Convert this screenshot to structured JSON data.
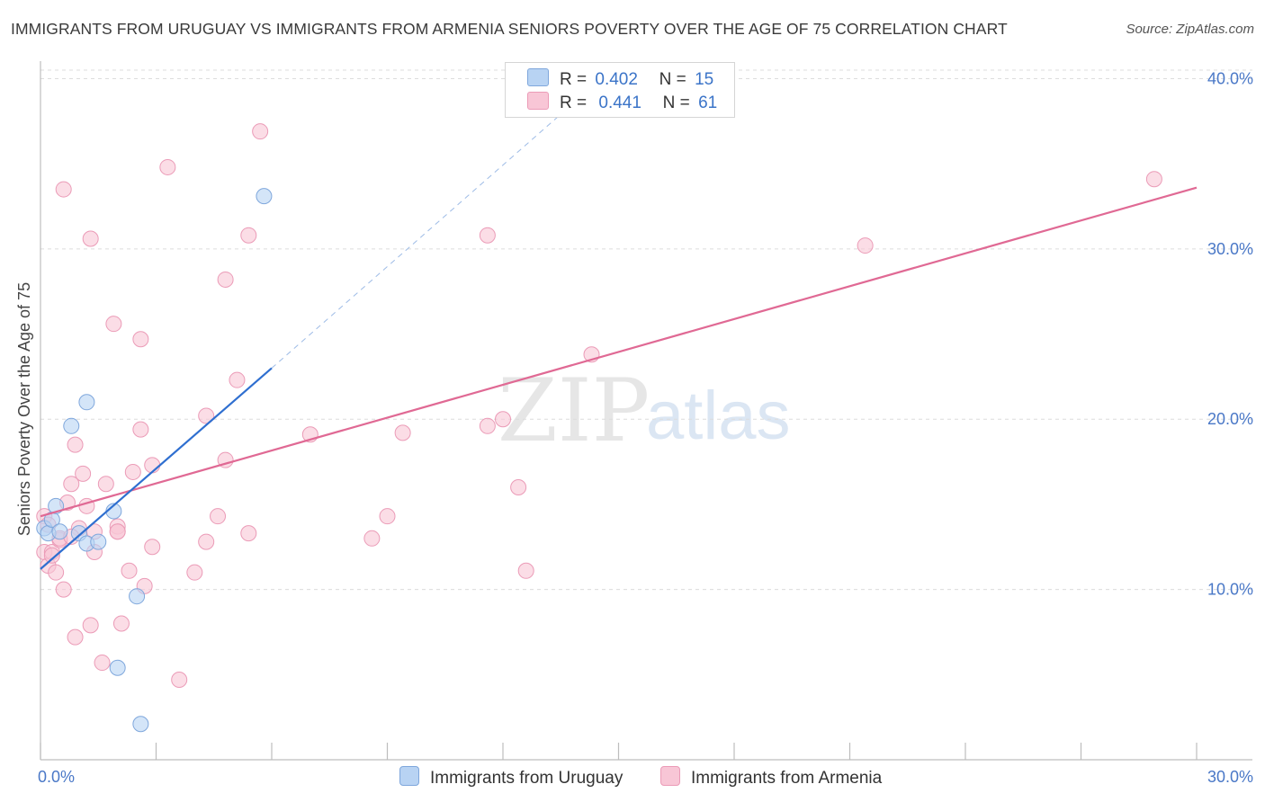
{
  "title": "IMMIGRANTS FROM URUGUAY VS IMMIGRANTS FROM ARMENIA SENIORS POVERTY OVER THE AGE OF 75 CORRELATION CHART",
  "source": "Source: ZipAtlas.com",
  "watermark": {
    "zip": "ZIP",
    "atlas": "atlas"
  },
  "legend": {
    "rows": [
      {
        "r_label": "R =",
        "r_value": "0.402",
        "n_label": "N =",
        "n_value": "15"
      },
      {
        "r_label": "R =",
        "r_value": "0.441",
        "n_label": "N =",
        "n_value": "61"
      }
    ]
  },
  "bottom_legend": {
    "series1": "Immigrants from Uruguay",
    "series2": "Immigrants from Armenia"
  },
  "chart_data": {
    "type": "scatter",
    "title": "IMMIGRANTS FROM URUGUAY VS IMMIGRANTS FROM ARMENIA SENIORS POVERTY OVER THE AGE OF 75 CORRELATION CHART",
    "xlabel": "",
    "ylabel": "Seniors Poverty Over the Age of 75",
    "xlim": [
      0,
      30
    ],
    "ylim": [
      0,
      40.5
    ],
    "x_ticks": [
      {
        "value": 0,
        "label": "0.0%"
      },
      {
        "value": 30,
        "label": "30.0%"
      }
    ],
    "y_ticks": [
      {
        "value": 10,
        "label": "10.0%"
      },
      {
        "value": 20,
        "label": "20.0%"
      },
      {
        "value": 30,
        "label": "30.0%"
      },
      {
        "value": 40,
        "label": "40.0%"
      }
    ],
    "colors": {
      "uruguay_fill": "#b8d3f3",
      "uruguay_stroke": "#7fa7dc",
      "uruguay_line": "#2f6fd0",
      "armenia_fill": "#f8c6d6",
      "armenia_stroke": "#eb9bb7",
      "armenia_line": "#e06994",
      "grid": "#dcdcdc",
      "tick_text": "#4a78c7"
    },
    "series": [
      {
        "name": "Immigrants from Uruguay",
        "R": 0.402,
        "N": 15,
        "trend": {
          "x0": 0.0,
          "y0": 11.2,
          "x1": 6.0,
          "y1": 23.0,
          "dash_to_x": 14.0,
          "dash_to_y": 38.9
        },
        "points": [
          [
            0.1,
            13.6
          ],
          [
            0.2,
            13.3
          ],
          [
            0.3,
            14.1
          ],
          [
            0.4,
            14.9
          ],
          [
            0.5,
            13.4
          ],
          [
            0.8,
            19.6
          ],
          [
            1.0,
            13.3
          ],
          [
            1.2,
            21.0
          ],
          [
            1.2,
            12.7
          ],
          [
            1.5,
            12.8
          ],
          [
            1.9,
            14.6
          ],
          [
            2.0,
            5.4
          ],
          [
            2.5,
            9.6
          ],
          [
            2.6,
            2.1
          ],
          [
            5.8,
            33.1
          ]
        ]
      },
      {
        "name": "Immigrants from Armenia",
        "R": 0.441,
        "N": 61,
        "trend": {
          "x0": 0.0,
          "y0": 14.3,
          "x1": 30.0,
          "y1": 33.6
        },
        "points": [
          [
            0.1,
            14.3
          ],
          [
            0.1,
            12.2
          ],
          [
            0.2,
            11.4
          ],
          [
            0.2,
            13.8
          ],
          [
            0.3,
            12.2
          ],
          [
            0.4,
            11.0
          ],
          [
            0.5,
            12.9
          ],
          [
            0.5,
            13.0
          ],
          [
            0.6,
            10.0
          ],
          [
            0.6,
            33.5
          ],
          [
            0.7,
            15.1
          ],
          [
            0.8,
            16.2
          ],
          [
            0.9,
            7.2
          ],
          [
            0.9,
            18.5
          ],
          [
            1.0,
            13.6
          ],
          [
            1.1,
            16.8
          ],
          [
            1.2,
            14.9
          ],
          [
            1.3,
            7.9
          ],
          [
            1.3,
            30.6
          ],
          [
            1.4,
            12.2
          ],
          [
            1.6,
            5.7
          ],
          [
            1.7,
            16.2
          ],
          [
            1.9,
            25.6
          ],
          [
            2.0,
            13.7
          ],
          [
            2.0,
            13.4
          ],
          [
            2.1,
            8.0
          ],
          [
            2.3,
            11.1
          ],
          [
            2.4,
            16.9
          ],
          [
            2.6,
            19.4
          ],
          [
            2.6,
            24.7
          ],
          [
            2.7,
            10.2
          ],
          [
            2.9,
            17.3
          ],
          [
            2.9,
            12.5
          ],
          [
            3.3,
            34.8
          ],
          [
            3.6,
            4.7
          ],
          [
            4.0,
            11.0
          ],
          [
            4.3,
            20.2
          ],
          [
            4.3,
            12.8
          ],
          [
            4.6,
            14.3
          ],
          [
            4.8,
            17.6
          ],
          [
            4.8,
            28.2
          ],
          [
            5.1,
            22.3
          ],
          [
            5.4,
            13.3
          ],
          [
            5.4,
            30.8
          ],
          [
            5.7,
            36.9
          ],
          [
            7.0,
            19.1
          ],
          [
            8.6,
            13.0
          ],
          [
            9.0,
            14.3
          ],
          [
            9.4,
            19.2
          ],
          [
            11.6,
            19.6
          ],
          [
            11.6,
            30.8
          ],
          [
            12.0,
            20.0
          ],
          [
            12.4,
            16.0
          ],
          [
            12.6,
            11.1
          ],
          [
            14.3,
            23.8
          ],
          [
            21.4,
            30.2
          ],
          [
            28.9,
            34.1
          ],
          [
            0.3,
            12.0
          ],
          [
            0.8,
            13.1
          ],
          [
            1.4,
            13.4
          ],
          [
            2.0,
            13.4
          ]
        ]
      }
    ]
  }
}
